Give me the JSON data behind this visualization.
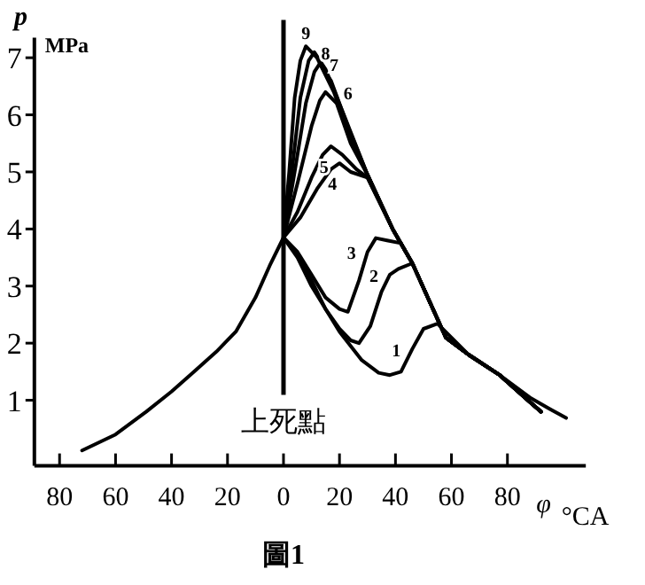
{
  "chart_data": {
    "type": "line",
    "title": "圖1",
    "xlabel": "φ °CA",
    "ylabel": "p",
    "annotations": [
      "MPa"
    ],
    "xlim": [
      -89,
      108
    ],
    "ylim": [
      -0.15,
      7.35
    ],
    "xticks": [
      {
        "value": -80,
        "label": "80"
      },
      {
        "value": -60,
        "label": "60"
      },
      {
        "value": -40,
        "label": "40"
      },
      {
        "value": -20,
        "label": "20"
      },
      0,
      20,
      40,
      60,
      80
    ],
    "yticks": [
      1,
      2,
      3,
      4,
      5,
      6,
      7
    ],
    "grid": false,
    "marker": "none",
    "line_style": "solid",
    "ref_lines": [
      {
        "axis": "x",
        "value": 0,
        "label": "上死點"
      }
    ],
    "series": [
      {
        "name": "1",
        "color": "#000000",
        "x": [
          -72,
          -60,
          -49,
          -40,
          -32,
          -24,
          -17,
          -10,
          -5,
          0,
          5,
          10,
          20,
          28,
          34,
          38,
          42,
          46,
          50,
          55,
          60,
          66,
          77,
          88,
          95,
          101
        ],
        "values": [
          0.12,
          0.4,
          0.8,
          1.15,
          1.5,
          1.85,
          2.2,
          2.8,
          3.35,
          3.85,
          3.5,
          3.0,
          2.2,
          1.7,
          1.48,
          1.44,
          1.5,
          1.9,
          2.25,
          2.34,
          2.1,
          1.8,
          1.45,
          1.05,
          0.85,
          0.69
        ]
      },
      {
        "name": "2",
        "color": "#000000",
        "x": [
          0,
          5,
          10,
          15,
          20,
          24,
          27,
          31,
          35,
          38,
          41,
          46,
          52,
          58,
          66,
          77,
          88,
          92
        ],
        "values": [
          3.85,
          3.55,
          3.1,
          2.6,
          2.25,
          2.05,
          2.0,
          2.3,
          2.9,
          3.2,
          3.3,
          3.4,
          2.75,
          2.1,
          1.8,
          1.45,
          0.97,
          0.8
        ]
      },
      {
        "name": "3",
        "color": "#000000",
        "x": [
          0,
          5,
          10,
          15,
          20,
          23,
          27,
          30,
          33,
          37,
          42,
          46,
          52,
          58,
          66,
          77,
          88,
          92
        ],
        "values": [
          3.85,
          3.6,
          3.2,
          2.8,
          2.6,
          2.55,
          3.1,
          3.6,
          3.84,
          3.8,
          3.75,
          3.4,
          2.75,
          2.1,
          1.8,
          1.45,
          0.97,
          0.8
        ]
      },
      {
        "name": "4",
        "color": "#000000",
        "x": [
          0,
          6,
          12,
          17,
          20,
          24,
          30,
          39,
          46,
          52,
          58,
          66,
          77,
          88,
          92
        ],
        "values": [
          3.85,
          4.2,
          4.7,
          5.05,
          5.15,
          5.0,
          4.9,
          4.0,
          3.4,
          2.75,
          2.1,
          1.8,
          1.45,
          0.97,
          0.8
        ]
      },
      {
        "name": "5",
        "color": "#000000",
        "x": [
          0,
          5,
          10,
          14,
          17,
          21,
          26,
          30,
          39,
          46,
          52,
          58,
          66,
          77,
          88,
          92
        ],
        "values": [
          3.85,
          4.3,
          4.9,
          5.3,
          5.45,
          5.3,
          5.05,
          4.9,
          4.0,
          3.4,
          2.75,
          2.1,
          1.8,
          1.45,
          0.97,
          0.8
        ]
      },
      {
        "name": "6",
        "color": "#000000",
        "x": [
          0,
          5,
          10,
          13,
          15,
          19,
          24,
          30,
          39,
          46,
          52,
          58,
          66,
          77,
          88,
          92
        ],
        "values": [
          3.85,
          4.8,
          5.8,
          6.25,
          6.4,
          6.2,
          5.5,
          4.95,
          4.0,
          3.4,
          2.75,
          2.1,
          1.8,
          1.45,
          0.97,
          0.8
        ]
      },
      {
        "name": "7",
        "color": "#000000",
        "x": [
          0,
          4,
          8,
          11,
          13,
          17,
          23,
          30,
          39,
          46,
          52,
          58,
          66,
          77,
          88,
          92
        ],
        "values": [
          3.85,
          5.0,
          6.2,
          6.75,
          6.9,
          6.6,
          5.8,
          4.95,
          4.0,
          3.4,
          2.75,
          2.1,
          1.8,
          1.45,
          0.97,
          0.8
        ]
      },
      {
        "name": "8",
        "color": "#000000",
        "x": [
          0,
          3,
          6,
          9,
          11,
          15,
          22,
          30,
          39,
          46,
          52,
          58,
          66,
          77,
          88,
          92
        ],
        "values": [
          3.85,
          5.0,
          6.3,
          6.95,
          7.1,
          6.8,
          5.95,
          4.95,
          4.0,
          3.4,
          2.75,
          2.1,
          1.8,
          1.45,
          0.97,
          0.8
        ]
      },
      {
        "name": "9",
        "color": "#000000",
        "x": [
          0,
          2,
          4,
          6,
          8,
          12,
          18,
          24,
          30,
          39,
          46,
          52,
          58,
          66,
          77,
          88,
          92
        ],
        "values": [
          3.85,
          5.0,
          6.3,
          6.95,
          7.2,
          7.0,
          6.4,
          5.6,
          4.95,
          4.0,
          3.4,
          2.75,
          2.1,
          1.8,
          1.45,
          0.97,
          0.8
        ]
      }
    ]
  }
}
